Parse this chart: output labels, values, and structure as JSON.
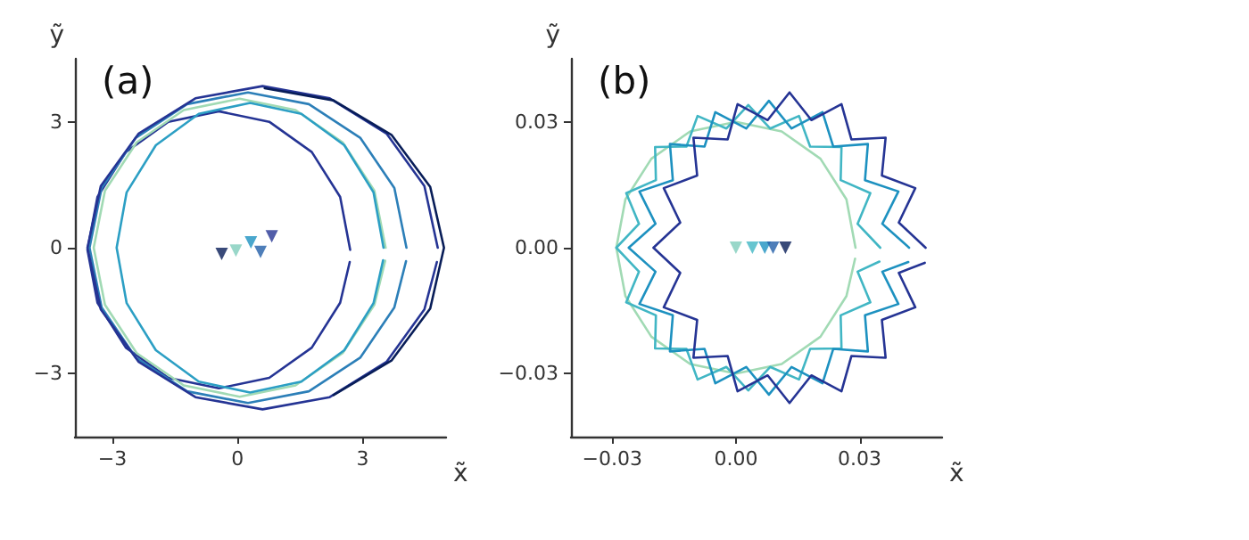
{
  "chart_data": [
    {
      "type": "line",
      "title": "(a)",
      "xlabel": "x̃",
      "ylabel": "ỹ",
      "xlim": [
        -3.9,
        5.0
      ],
      "ylim": [
        -4.5,
        4.5
      ],
      "xticks": [
        {
          "value": -3,
          "label": "−3"
        },
        0,
        3
      ],
      "yticks": [
        {
          "value": -3,
          "label": "−3"
        },
        0,
        3
      ],
      "marker": "none",
      "series": [
        {
          "color": "#253494",
          "x": [
            2.7,
            2.46,
            1.78,
            0.76,
            -0.45,
            -1.66,
            -2.68,
            -3.36,
            -3.6,
            -3.36,
            -2.68,
            -1.66,
            -0.45,
            0.76,
            1.78,
            2.46,
            2.69
          ],
          "values": [
            -0.05,
            1.21,
            2.28,
            3.0,
            3.25,
            3.0,
            2.28,
            1.21,
            -0.05,
            -1.31,
            -2.38,
            -3.1,
            -3.35,
            -3.1,
            -2.38,
            -1.31,
            -0.34
          ]
        },
        {
          "color": "#a1dab4",
          "x": [
            3.55,
            3.28,
            2.52,
            1.39,
            0.05,
            -1.29,
            -2.42,
            -3.18,
            -3.45,
            -3.18,
            -2.42,
            -1.29,
            0.05,
            1.39,
            2.52,
            3.28,
            3.54
          ],
          "values": [
            0,
            1.36,
            2.51,
            3.28,
            3.55,
            3.28,
            2.51,
            1.36,
            0,
            -1.36,
            -2.51,
            -3.28,
            -3.55,
            -3.28,
            -2.51,
            -1.36,
            -0.31
          ]
        },
        {
          "color": "#2c9fc4",
          "x": [
            3.5,
            3.26,
            2.56,
            1.53,
            0.3,
            -0.93,
            -1.96,
            -2.66,
            -2.9,
            -2.66,
            -1.96,
            -0.93,
            0.3,
            1.53,
            2.56,
            3.26,
            3.49
          ],
          "values": [
            0,
            1.32,
            2.44,
            3.19,
            3.45,
            3.19,
            2.44,
            1.32,
            0,
            -1.32,
            -2.44,
            -3.19,
            -3.45,
            -3.19,
            -2.44,
            -1.32,
            -0.3
          ]
        },
        {
          "color": "#2c7fb8",
          "x": [
            4.05,
            3.76,
            2.94,
            1.71,
            0.25,
            -1.21,
            -2.44,
            -3.26,
            -3.55,
            -3.26,
            -2.44,
            -1.21,
            0.25,
            1.71,
            2.94,
            3.76,
            4.04
          ],
          "values": [
            0,
            1.42,
            2.62,
            3.42,
            3.7,
            3.42,
            2.62,
            1.42,
            0,
            -1.42,
            -2.62,
            -3.42,
            -3.7,
            -3.42,
            -2.62,
            -1.42,
            -0.32
          ]
        },
        {
          "color": "#253494",
          "x": [
            4.8,
            4.48,
            3.57,
            2.21,
            0.6,
            -1.01,
            -2.37,
            -3.28,
            -3.6,
            -3.28,
            -2.37,
            -1.01,
            0.6,
            2.21,
            3.57,
            4.48,
            4.78
          ],
          "values": [
            0,
            1.47,
            2.72,
            3.56,
            3.85,
            3.56,
            2.72,
            1.47,
            0,
            -1.47,
            -2.72,
            -3.56,
            -3.85,
            -3.56,
            -2.72,
            -1.47,
            -0.34
          ]
        },
        {
          "color": "#081d58",
          "x": [
            2.3,
            3.69,
            4.62,
            4.95,
            4.62,
            3.69,
            2.3,
            0.65
          ],
          "values": [
            -3.51,
            -2.69,
            -1.45,
            0,
            1.45,
            2.69,
            3.51,
            3.8
          ]
        },
        {
          "type": "scatter",
          "marker": "triangle",
          "color": "#253494",
          "colors": [
            "#081d58",
            "#7fcdbb",
            "#1d91c0",
            "#225ea8",
            "#253494"
          ],
          "x": [
            -0.38,
            -0.04,
            0.32,
            0.55,
            0.82
          ],
          "values": [
            -0.15,
            -0.07,
            0.13,
            -0.1,
            0.27
          ]
        }
      ]
    },
    {
      "type": "line",
      "title": "(b)",
      "xlabel": "x̃",
      "ylabel": "ỹ",
      "xlim": [
        -0.04,
        0.05
      ],
      "ylim": [
        -0.045,
        0.045
      ],
      "xticks": [
        {
          "value": -0.03,
          "label": "−0.03"
        },
        {
          "value": 0,
          "label": "0.00"
        },
        0.03
      ],
      "yticks": [
        {
          "value": -0.03,
          "label": "−0.03"
        },
        {
          "value": 0,
          "label": "0.00"
        },
        0.03
      ],
      "marker": "none",
      "series": [
        {
          "color": "#a1dab4",
          "x": [
            0.029,
            0.0268,
            0.0205,
            0.0111,
            0,
            -0.0111,
            -0.0205,
            -0.0268,
            -0.029,
            -0.0268,
            -0.0205,
            -0.0111,
            0,
            0.0111,
            0.0205,
            0.0268,
            0.0289
          ],
          "values": [
            0,
            0.0115,
            0.0212,
            0.0277,
            0.03,
            0.0277,
            0.0212,
            0.0115,
            0,
            -0.0115,
            -0.0212,
            -0.0277,
            -0.03,
            -0.0277,
            -0.0212,
            -0.0115,
            -0.0026
          ]
        },
        {
          "color": "#41b6c4",
          "x": [
            0.035,
            0.0295,
            0.0326,
            0.0254,
            0.0256,
            0.018,
            0.0153,
            0.0083,
            0.003,
            -0.0023,
            -0.0093,
            -0.012,
            -0.0196,
            -0.0194,
            -0.0266,
            -0.0235,
            -0.029,
            -0.0235,
            -0.0266,
            -0.0194,
            -0.0196,
            -0.012,
            -0.0093,
            -0.0023,
            0.003,
            0.0083,
            0.0153,
            0.018,
            0.0256,
            0.0254,
            0.0326,
            0.0295,
            0.0348
          ],
          "values": [
            0,
            0.0057,
            0.013,
            0.0161,
            0.024,
            0.0241,
            0.0314,
            0.0284,
            0.034,
            0.0284,
            0.0314,
            0.0241,
            0.024,
            0.0161,
            0.013,
            0.0057,
            0,
            -0.0057,
            -0.013,
            -0.0161,
            -0.024,
            -0.0241,
            -0.0314,
            -0.0284,
            -0.034,
            -0.0284,
            -0.0314,
            -0.0241,
            -0.024,
            -0.0161,
            -0.013,
            -0.0057,
            -0.0033
          ]
        },
        {
          "color": "#1d91c0",
          "x": [
            0.042,
            0.0355,
            0.0394,
            0.0313,
            0.032,
            0.0236,
            0.021,
            0.0135,
            0.008,
            0.0025,
            -0.005,
            -0.0076,
            -0.016,
            -0.0153,
            -0.0234,
            -0.0195,
            -0.026,
            -0.0195,
            -0.0234,
            -0.0153,
            -0.016,
            -0.0076,
            -0.005,
            0.0025,
            0.008,
            0.0135,
            0.021,
            0.0236,
            0.032,
            0.0313,
            0.0394,
            0.0355,
            0.0418
          ],
          "values": [
            0,
            0.0057,
            0.0134,
            0.0161,
            0.0247,
            0.0241,
            0.0323,
            0.0284,
            0.035,
            0.0284,
            0.0323,
            0.0241,
            0.0247,
            0.0161,
            0.0134,
            0.0057,
            0,
            -0.0057,
            -0.0134,
            -0.0161,
            -0.0247,
            -0.0241,
            -0.0323,
            -0.0284,
            -0.035,
            -0.0284,
            -0.0323,
            -0.0241,
            -0.0247,
            -0.0161,
            -0.0134,
            -0.0057,
            -0.0034
          ]
        },
        {
          "color": "#253494",
          "x": [
            0.046,
            0.0395,
            0.0435,
            0.0354,
            0.0363,
            0.028,
            0.0256,
            0.0183,
            0.013,
            0.0077,
            0.0004,
            -0.002,
            -0.0103,
            -0.0094,
            -0.0175,
            -0.0135,
            -0.02,
            -0.0135,
            -0.0175,
            -0.0094,
            -0.0103,
            -0.002,
            0.0004,
            0.0077,
            0.013,
            0.0183,
            0.0256,
            0.028,
            0.0363,
            0.0354,
            0.0435,
            0.0395,
            0.0458
          ],
          "values": [
            0,
            0.006,
            0.0142,
            0.0172,
            0.0262,
            0.0258,
            0.0342,
            0.0304,
            0.037,
            0.0304,
            0.0342,
            0.0258,
            0.0262,
            0.0172,
            0.0142,
            0.006,
            0,
            -0.006,
            -0.0142,
            -0.0172,
            -0.0262,
            -0.0258,
            -0.0342,
            -0.0304,
            -0.037,
            -0.0304,
            -0.0342,
            -0.0258,
            -0.0262,
            -0.0172,
            -0.0142,
            -0.006,
            -0.0036
          ]
        },
        {
          "type": "scatter",
          "marker": "triangle",
          "color": "#253494",
          "colors": [
            "#7fcdbb",
            "#41b6c4",
            "#1d91c0",
            "#225ea8",
            "#081d58"
          ],
          "x": [
            0,
            0.004,
            0.007,
            0.009,
            0.012
          ],
          "values": [
            0,
            0,
            0,
            0,
            0
          ]
        }
      ]
    }
  ]
}
